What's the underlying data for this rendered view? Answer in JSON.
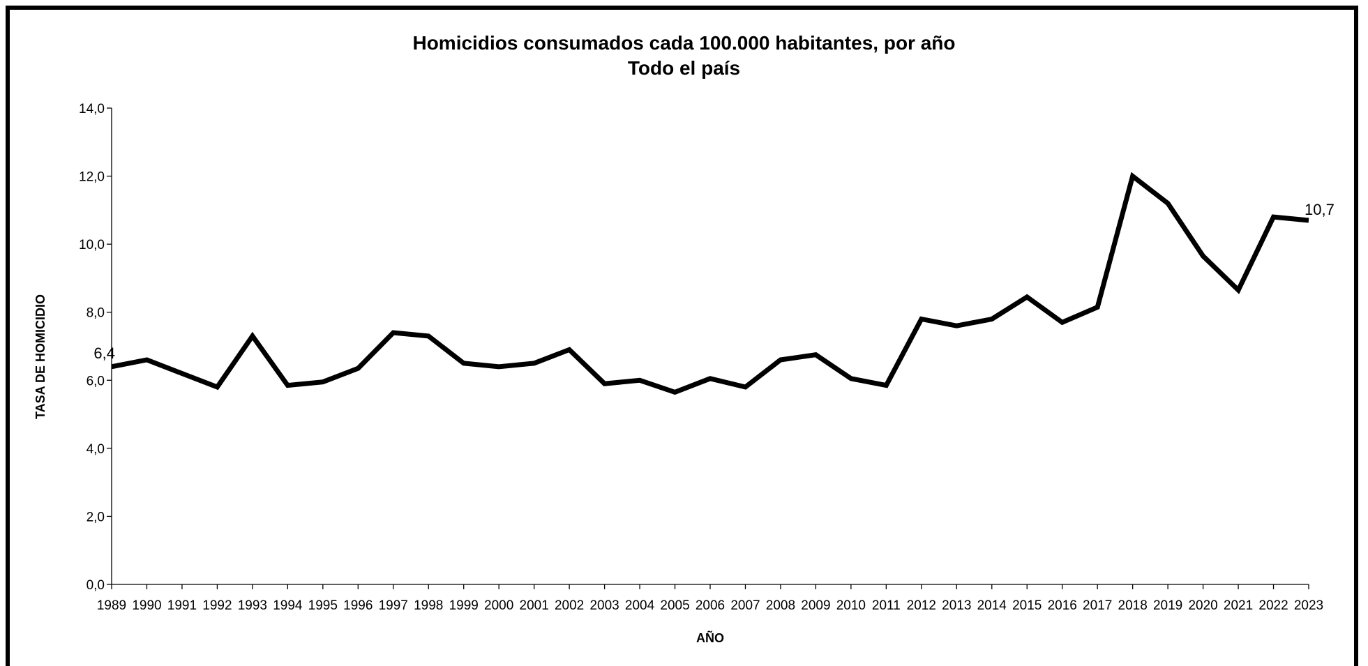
{
  "chart_data": {
    "type": "line",
    "title": "Homicidios consumados cada 100.000 habitantes, por año",
    "subtitle": "Todo el país",
    "xlabel": "AÑO",
    "ylabel": "TASA DE HOMICIDIO",
    "ylim": [
      0,
      14
    ],
    "yticks": [
      "0,0",
      "2,0",
      "4,0",
      "6,0",
      "8,0",
      "10,0",
      "12,0",
      "14,0"
    ],
    "yticks_values": [
      0,
      2,
      4,
      6,
      8,
      10,
      12,
      14
    ],
    "grid": false,
    "legend": "none",
    "line_color": "#000000",
    "categories": [
      "1989",
      "1990",
      "1991",
      "1992",
      "1993",
      "1994",
      "1995",
      "1996",
      "1997",
      "1998",
      "1999",
      "2000",
      "2001",
      "2002",
      "2003",
      "2004",
      "2005",
      "2006",
      "2007",
      "2008",
      "2009",
      "2010",
      "2011",
      "2012",
      "2013",
      "2014",
      "2015",
      "2016",
      "2017",
      "2018",
      "2019",
      "2020",
      "2021",
      "2022",
      "2023"
    ],
    "values": [
      6.4,
      6.6,
      6.2,
      5.8,
      7.3,
      5.85,
      5.95,
      6.35,
      7.4,
      7.3,
      6.5,
      6.4,
      6.5,
      6.9,
      5.9,
      6.0,
      5.65,
      6.05,
      5.8,
      6.6,
      6.75,
      6.05,
      5.85,
      7.8,
      7.6,
      7.8,
      8.45,
      7.7,
      8.15,
      12.0,
      11.2,
      9.65,
      8.65,
      10.8,
      10.7
    ],
    "data_labels": [
      {
        "category": "1989",
        "text": "6,4"
      },
      {
        "category": "2023",
        "text": "10,7"
      }
    ]
  }
}
